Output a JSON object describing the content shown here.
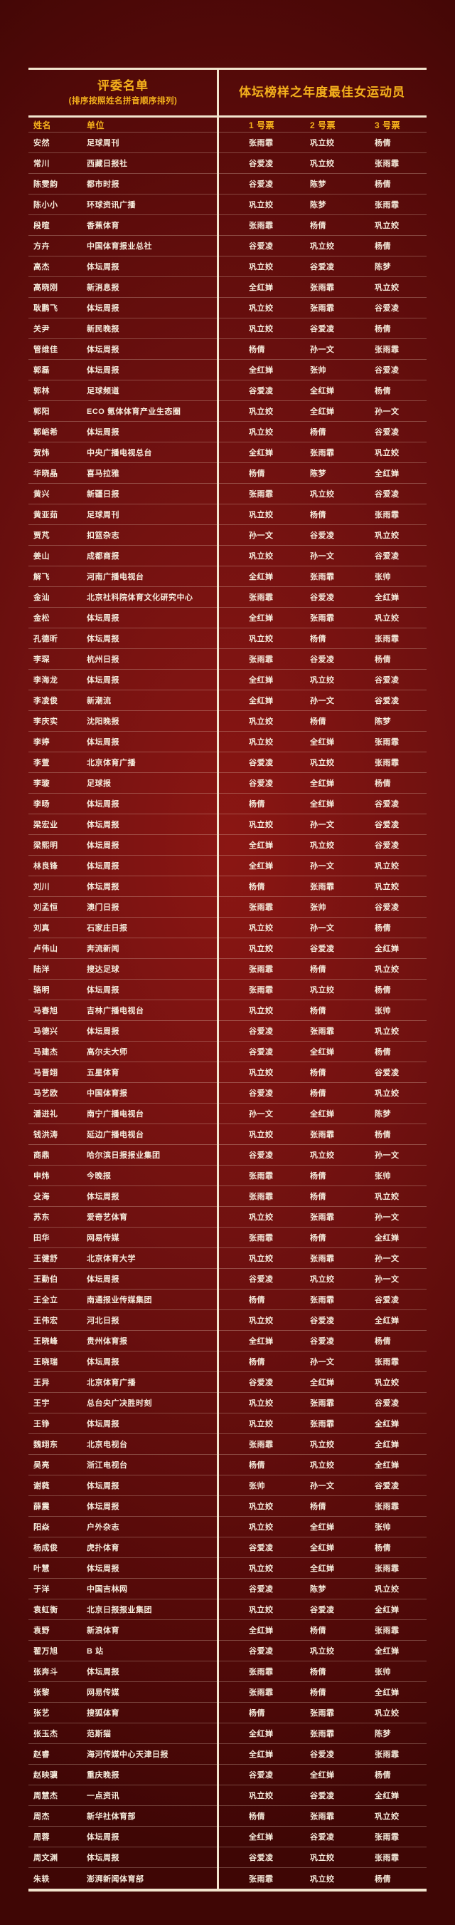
{
  "colors": {
    "background": "#6e0f0d",
    "accent_gold": "#f5b11c",
    "text_cream": "#f6ecdc",
    "border_cream": "#f2e4ce"
  },
  "table": {
    "left_header": {
      "title": "评委名单",
      "subtitle": "(排序按照姓名拼音顺序排列)"
    },
    "right_header": {
      "title": "体坛榜样之年度最佳女运动员"
    },
    "columns": {
      "name": "姓名",
      "org": "单位",
      "vote1": "1 号票",
      "vote2": "2 号票",
      "vote3": "3 号票"
    },
    "rows": [
      {
        "name": "安然",
        "org": "足球周刊",
        "votes": [
          "张雨霏",
          "巩立姣",
          "杨倩"
        ]
      },
      {
        "name": "常川",
        "org": "西藏日报社",
        "votes": [
          "谷爱凌",
          "巩立姣",
          "张雨霏"
        ]
      },
      {
        "name": "陈雯韵",
        "org": "都市时报",
        "votes": [
          "谷爱凌",
          "陈梦",
          "杨倩"
        ]
      },
      {
        "name": "陈小小",
        "org": "环球资讯广播",
        "votes": [
          "巩立姣",
          "陈梦",
          "张雨霏"
        ]
      },
      {
        "name": "段暄",
        "org": "香蕉体育",
        "votes": [
          "张雨霏",
          "杨倩",
          "巩立姣"
        ]
      },
      {
        "name": "方卉",
        "org": "中国体育报业总社",
        "votes": [
          "谷爱凌",
          "巩立姣",
          "杨倩"
        ]
      },
      {
        "name": "高杰",
        "org": "体坛周报",
        "votes": [
          "巩立姣",
          "谷爱凌",
          "陈梦"
        ]
      },
      {
        "name": "高晓刚",
        "org": "新消息报",
        "votes": [
          "全红婵",
          "张雨霏",
          "巩立姣"
        ]
      },
      {
        "name": "耿鹏飞",
        "org": "体坛周报",
        "votes": [
          "巩立姣",
          "张雨霏",
          "谷爱凌"
        ]
      },
      {
        "name": "关尹",
        "org": "新民晚报",
        "votes": [
          "巩立姣",
          "谷爱凌",
          "杨倩"
        ]
      },
      {
        "name": "管维佳",
        "org": "体坛周报",
        "votes": [
          "杨倩",
          "孙一文",
          "张雨霏"
        ]
      },
      {
        "name": "郭磊",
        "org": "体坛周报",
        "votes": [
          "全红婵",
          "张帅",
          "谷爱凌"
        ]
      },
      {
        "name": "郭林",
        "org": "足球频道",
        "votes": [
          "谷爱凌",
          "全红婵",
          "杨倩"
        ]
      },
      {
        "name": "郭阳",
        "org": "ECO 氪体体育产业生态圈",
        "votes": [
          "巩立姣",
          "全红婵",
          "孙一文"
        ]
      },
      {
        "name": "郭峪希",
        "org": "体坛周报",
        "votes": [
          "巩立姣",
          "杨倩",
          "谷爱凌"
        ]
      },
      {
        "name": "贺炜",
        "org": "中央广播电视总台",
        "votes": [
          "全红婵",
          "张雨霏",
          "巩立姣"
        ]
      },
      {
        "name": "华晓晶",
        "org": "喜马拉雅",
        "votes": [
          "杨倩",
          "陈梦",
          "全红婵"
        ]
      },
      {
        "name": "黄兴",
        "org": "新疆日报",
        "votes": [
          "张雨霏",
          "巩立姣",
          "谷爱凌"
        ]
      },
      {
        "name": "黄亚茹",
        "org": "足球周刊",
        "votes": [
          "巩立姣",
          "杨倩",
          "张雨霏"
        ]
      },
      {
        "name": "贾芃",
        "org": "扣篮杂志",
        "votes": [
          "孙一文",
          "谷爱凌",
          "巩立姣"
        ]
      },
      {
        "name": "姜山",
        "org": "成都商报",
        "votes": [
          "巩立姣",
          "孙一文",
          "谷爱凌"
        ]
      },
      {
        "name": "解飞",
        "org": "河南广播电视台",
        "votes": [
          "全红婵",
          "张雨霏",
          "张帅"
        ]
      },
      {
        "name": "金汕",
        "org": "北京社科院体育文化研究中心",
        "votes": [
          "张雨霏",
          "谷爱凌",
          "全红婵"
        ]
      },
      {
        "name": "金松",
        "org": "体坛周报",
        "votes": [
          "全红婵",
          "张雨霏",
          "巩立姣"
        ]
      },
      {
        "name": "孔德昕",
        "org": "体坛周报",
        "votes": [
          "巩立姣",
          "杨倩",
          "张雨霏"
        ]
      },
      {
        "name": "李琛",
        "org": "杭州日报",
        "votes": [
          "张雨霏",
          "谷爱凌",
          "杨倩"
        ]
      },
      {
        "name": "李海龙",
        "org": "体坛周报",
        "votes": [
          "全红婵",
          "巩立姣",
          "谷爱凌"
        ]
      },
      {
        "name": "李凌俊",
        "org": "新潮流",
        "votes": [
          "全红婵",
          "孙一文",
          "谷爱凌"
        ]
      },
      {
        "name": "李庆实",
        "org": "沈阳晚报",
        "votes": [
          "巩立姣",
          "杨倩",
          "陈梦"
        ]
      },
      {
        "name": "李婷",
        "org": "体坛周报",
        "votes": [
          "巩立姣",
          "全红婵",
          "张雨霏"
        ]
      },
      {
        "name": "李萱",
        "org": "北京体育广播",
        "votes": [
          "谷爱凌",
          "巩立姣",
          "张雨霏"
        ]
      },
      {
        "name": "李璇",
        "org": "足球报",
        "votes": [
          "谷爱凌",
          "全红婵",
          "杨倩"
        ]
      },
      {
        "name": "李旸",
        "org": "体坛周报",
        "votes": [
          "杨倩",
          "全红婵",
          "谷爱凌"
        ]
      },
      {
        "name": "梁宏业",
        "org": "体坛周报",
        "votes": [
          "巩立姣",
          "孙一文",
          "谷爱凌"
        ]
      },
      {
        "name": "梁熙明",
        "org": "体坛周报",
        "votes": [
          "全红婵",
          "巩立姣",
          "谷爱凌"
        ]
      },
      {
        "name": "林良锋",
        "org": "体坛周报",
        "votes": [
          "全红婵",
          "孙一文",
          "巩立姣"
        ]
      },
      {
        "name": "刘川",
        "org": "体坛周报",
        "votes": [
          "杨倩",
          "张雨霏",
          "巩立姣"
        ]
      },
      {
        "name": "刘孟恒",
        "org": "澳门日报",
        "votes": [
          "张雨霏",
          "张帅",
          "谷爱凌"
        ]
      },
      {
        "name": "刘真",
        "org": "石家庄日报",
        "votes": [
          "巩立姣",
          "孙一文",
          "杨倩"
        ]
      },
      {
        "name": "卢伟山",
        "org": "奔流新闻",
        "votes": [
          "巩立姣",
          "谷爱凌",
          "全红婵"
        ]
      },
      {
        "name": "陆洋",
        "org": "搜达足球",
        "votes": [
          "张雨霏",
          "杨倩",
          "巩立姣"
        ]
      },
      {
        "name": "骆明",
        "org": "体坛周报",
        "votes": [
          "张雨霏",
          "巩立姣",
          "杨倩"
        ]
      },
      {
        "name": "马春旭",
        "org": "吉林广播电视台",
        "votes": [
          "巩立姣",
          "杨倩",
          "张帅"
        ]
      },
      {
        "name": "马德兴",
        "org": "体坛周报",
        "votes": [
          "谷爱凌",
          "张雨霏",
          "巩立姣"
        ]
      },
      {
        "name": "马建杰",
        "org": "高尔夫大师",
        "votes": [
          "谷爱凌",
          "全红婵",
          "杨倩"
        ]
      },
      {
        "name": "马晋翊",
        "org": "五星体育",
        "votes": [
          "巩立姣",
          "杨倩",
          "谷爱凌"
        ]
      },
      {
        "name": "马艺欧",
        "org": "中国体育报",
        "votes": [
          "谷爱凌",
          "杨倩",
          "巩立姣"
        ]
      },
      {
        "name": "潘进礼",
        "org": "南宁广播电视台",
        "votes": [
          "孙一文",
          "全红婵",
          "陈梦"
        ]
      },
      {
        "name": "钱洪涛",
        "org": "延边广播电视台",
        "votes": [
          "巩立姣",
          "张雨霏",
          "杨倩"
        ]
      },
      {
        "name": "商鼎",
        "org": "哈尔滨日报报业集团",
        "votes": [
          "谷爱凌",
          "巩立姣",
          "孙一文"
        ]
      },
      {
        "name": "申炜",
        "org": "今晚报",
        "votes": [
          "张雨霏",
          "杨倩",
          "张帅"
        ]
      },
      {
        "name": "殳海",
        "org": "体坛周报",
        "votes": [
          "张雨霏",
          "杨倩",
          "巩立姣"
        ]
      },
      {
        "name": "苏东",
        "org": "爱奇艺体育",
        "votes": [
          "巩立姣",
          "张雨霏",
          "孙一文"
        ]
      },
      {
        "name": "田华",
        "org": "网易传媒",
        "votes": [
          "张雨霏",
          "杨倩",
          "全红婵"
        ]
      },
      {
        "name": "王健舒",
        "org": "北京体育大学",
        "votes": [
          "巩立姣",
          "张雨霏",
          "孙一文"
        ]
      },
      {
        "name": "王勤伯",
        "org": "体坛周报",
        "votes": [
          "谷爱凌",
          "巩立姣",
          "孙一文"
        ]
      },
      {
        "name": "王全立",
        "org": "南通报业传媒集团",
        "votes": [
          "杨倩",
          "张雨霏",
          "谷爱凌"
        ]
      },
      {
        "name": "王伟宏",
        "org": "河北日报",
        "votes": [
          "巩立姣",
          "谷爱凌",
          "全红婵"
        ]
      },
      {
        "name": "王晓峰",
        "org": "贵州体育报",
        "votes": [
          "全红婵",
          "谷爱凌",
          "杨倩"
        ]
      },
      {
        "name": "王晓瑞",
        "org": "体坛周报",
        "votes": [
          "杨倩",
          "孙一文",
          "张雨霏"
        ]
      },
      {
        "name": "王异",
        "org": "北京体育广播",
        "votes": [
          "谷爱凌",
          "全红婵",
          "巩立姣"
        ]
      },
      {
        "name": "王宇",
        "org": "总台央广决胜时刻",
        "votes": [
          "巩立姣",
          "张雨霏",
          "谷爱凌"
        ]
      },
      {
        "name": "王铮",
        "org": "体坛周报",
        "votes": [
          "巩立姣",
          "张雨霏",
          "全红婵"
        ]
      },
      {
        "name": "魏翊东",
        "org": "北京电视台",
        "votes": [
          "张雨霏",
          "巩立姣",
          "全红婵"
        ]
      },
      {
        "name": "吴亮",
        "org": "浙江电视台",
        "votes": [
          "杨倩",
          "巩立姣",
          "全红婵"
        ]
      },
      {
        "name": "谢蕤",
        "org": "体坛周报",
        "votes": [
          "张帅",
          "孙一文",
          "谷爱凌"
        ]
      },
      {
        "name": "薛震",
        "org": "体坛周报",
        "votes": [
          "巩立姣",
          "杨倩",
          "张雨霏"
        ]
      },
      {
        "name": "阳焱",
        "org": "户外杂志",
        "votes": [
          "巩立姣",
          "全红婵",
          "张帅"
        ]
      },
      {
        "name": "杨成俊",
        "org": "虎扑体育",
        "votes": [
          "谷爱凌",
          "全红婵",
          "杨倩"
        ]
      },
      {
        "name": "叶慧",
        "org": "体坛周报",
        "votes": [
          "巩立姣",
          "全红婵",
          "张雨霏"
        ]
      },
      {
        "name": "于洋",
        "org": "中国吉林网",
        "votes": [
          "谷爱凌",
          "陈梦",
          "巩立姣"
        ]
      },
      {
        "name": "袁虹衡",
        "org": "北京日报报业集团",
        "votes": [
          "巩立姣",
          "谷爱凌",
          "全红婵"
        ]
      },
      {
        "name": "袁野",
        "org": "新浪体育",
        "votes": [
          "全红婵",
          "杨倩",
          "张雨霏"
        ]
      },
      {
        "name": "翟万旭",
        "org": "B 站",
        "votes": [
          "谷爱凌",
          "巩立姣",
          "全红婵"
        ]
      },
      {
        "name": "张奔斗",
        "org": "体坛周报",
        "votes": [
          "张雨霏",
          "杨倩",
          "张帅"
        ]
      },
      {
        "name": "张黎",
        "org": "网易传媒",
        "votes": [
          "张雨霏",
          "杨倩",
          "全红婵"
        ]
      },
      {
        "name": "张艺",
        "org": "搜狐体育",
        "votes": [
          "杨倩",
          "张雨霏",
          "巩立姣"
        ]
      },
      {
        "name": "张玉杰",
        "org": "范斯猫",
        "votes": [
          "全红婵",
          "张雨霏",
          "陈梦"
        ]
      },
      {
        "name": "赵睿",
        "org": "海河传媒中心天津日报",
        "votes": [
          "全红婵",
          "谷爱凌",
          "张雨霏"
        ]
      },
      {
        "name": "赵映骥",
        "org": "重庆晚报",
        "votes": [
          "谷爱凌",
          "全红婵",
          "杨倩"
        ]
      },
      {
        "name": "周慧杰",
        "org": "一点资讯",
        "votes": [
          "巩立姣",
          "谷爱凌",
          "全红婵"
        ]
      },
      {
        "name": "周杰",
        "org": "新华社体育部",
        "votes": [
          "杨倩",
          "张雨霏",
          "巩立姣"
        ]
      },
      {
        "name": "周蓉",
        "org": "体坛周报",
        "votes": [
          "全红婵",
          "谷爱凌",
          "张雨霏"
        ]
      },
      {
        "name": "周文渊",
        "org": "体坛周报",
        "votes": [
          "谷爱凌",
          "巩立姣",
          "张雨霏"
        ]
      },
      {
        "name": "朱轶",
        "org": "澎湃新闻体育部",
        "votes": [
          "张雨霏",
          "巩立姣",
          "杨倩"
        ]
      }
    ]
  }
}
